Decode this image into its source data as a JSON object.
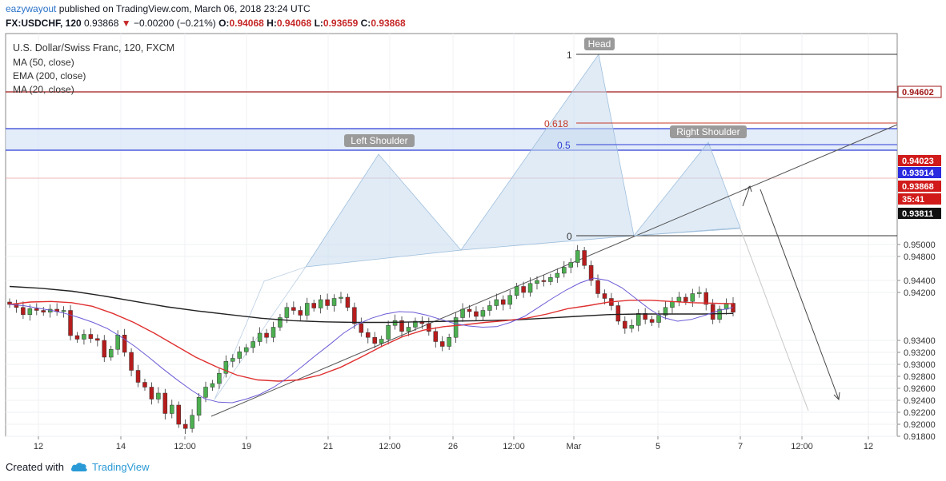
{
  "header": {
    "user": "eazywayout",
    "published": "published on TradingView.com, March 06, 2018 23:24 UTC",
    "symbol": "FX:USDCHF, 120",
    "last": "0.93868",
    "change_arrow": "▼",
    "change": "−0.00200 (−0.21%)",
    "o_label": "O:",
    "o_value": "0.94068",
    "h_label": "H:",
    "h_value": "0.94068",
    "l_label": "L:",
    "l_value": "0.93659",
    "c_label": "C:",
    "c_value": "0.93868"
  },
  "legend": {
    "title": "U.S. Dollar/Swiss Franc, 120, FXCM",
    "ma50": "MA (50, close)",
    "ema200": "EMA (200, close)",
    "ma20": "MA (20, close)"
  },
  "footer": {
    "created_with": "Created with",
    "brand": "TradingView"
  },
  "colors": {
    "up": "#4caf50",
    "down": "#b71c1c",
    "ma50": "#e03030",
    "ema200": "#222222",
    "ma20": "#6b5bd6",
    "pattern_fill": "#cfe0f0",
    "hline_red": "#a11919",
    "hline_blue": "#2d3ed6",
    "tag_blue": "#2b2be0",
    "tag_red": "#d11a1a"
  },
  "chart_data": {
    "type": "line",
    "title": "U.S. Dollar/Swiss Franc, 120, FXCM",
    "xlabel": "",
    "ylabel": "",
    "ylim": [
      0.9172,
      0.951
    ],
    "x_ticks": [
      "12",
      "14",
      "12:00",
      "19",
      "21",
      "12:00",
      "26",
      "12:00",
      "Mar",
      "5",
      "7",
      "12:00",
      "12"
    ],
    "y_ticks": [
      "0.95000",
      "0.94800",
      "0.94400",
      "0.94200",
      "0.93400",
      "0.93200",
      "0.93000",
      "0.92800",
      "0.92600",
      "0.92400",
      "0.92200",
      "0.92000",
      "0.91800"
    ],
    "price_tags": [
      {
        "label": "0.94602",
        "value": 0.94602,
        "style": "red"
      },
      {
        "label": "0.94023",
        "value": 0.94023,
        "style": "red"
      },
      {
        "label": "0.93914",
        "value": 0.93914,
        "style": "blue"
      },
      {
        "label": "0.93868",
        "value": 0.93868,
        "style": "red"
      },
      {
        "label": "35:41",
        "value": 0.93745,
        "style": "red"
      },
      {
        "label": "0.93811",
        "value": 0.93811,
        "style": "black"
      }
    ],
    "annotations": [
      "Head",
      "Left Shoulder",
      "Right Shoulder"
    ],
    "fib_levels": [
      {
        "label": "1",
        "value": 0.9492
      },
      {
        "label": "0.618",
        "value": 0.9435
      },
      {
        "label": "0.5",
        "value": 0.9416
      },
      {
        "label": "0",
        "value": 0.934
      }
    ],
    "close_series": [
      0.94,
      0.9395,
      0.9383,
      0.9393,
      0.939,
      0.9387,
      0.9392,
      0.9388,
      0.939,
      0.9348,
      0.9342,
      0.935,
      0.9343,
      0.934,
      0.9312,
      0.9325,
      0.9349,
      0.932,
      0.929,
      0.927,
      0.9262,
      0.9242,
      0.9252,
      0.9218,
      0.9232,
      0.92,
      0.9193,
      0.9215,
      0.9245,
      0.9262,
      0.9268,
      0.9285,
      0.9305,
      0.931,
      0.9321,
      0.9328,
      0.9338,
      0.9352,
      0.9345,
      0.9362,
      0.9378,
      0.9395,
      0.939,
      0.9382,
      0.9402,
      0.9394,
      0.9408,
      0.9398,
      0.941,
      0.9412,
      0.9395,
      0.9368,
      0.9353,
      0.9345,
      0.9335,
      0.9342,
      0.9365,
      0.9373,
      0.9355,
      0.9362,
      0.9372,
      0.9368,
      0.9355,
      0.9338,
      0.933,
      0.9345,
      0.9378,
      0.9392,
      0.9388,
      0.938,
      0.939,
      0.9398,
      0.9408,
      0.94,
      0.9415,
      0.943,
      0.942,
      0.9435,
      0.944,
      0.9438,
      0.9445,
      0.9452,
      0.9462,
      0.947,
      0.949,
      0.9465,
      0.944,
      0.9418,
      0.941,
      0.9398,
      0.9372,
      0.936,
      0.9365,
      0.9385,
      0.9375,
      0.937,
      0.9382,
      0.9395,
      0.9405,
      0.9412,
      0.9405,
      0.9418,
      0.942,
      0.94,
      0.9375,
      0.9392,
      0.9402,
      0.9387
    ],
    "ma20_series": [
      0.94,
      0.9398,
      0.9394,
      0.939,
      0.9385,
      0.9378,
      0.937,
      0.936,
      0.9346,
      0.933,
      0.9312,
      0.9293,
      0.9275,
      0.9258,
      0.9243,
      0.9237,
      0.9236,
      0.9242,
      0.925,
      0.9262,
      0.9278,
      0.9296,
      0.9315,
      0.9333,
      0.9352,
      0.9367,
      0.9377,
      0.9384,
      0.9388,
      0.9387,
      0.9382,
      0.9375,
      0.9368,
      0.9364,
      0.9362,
      0.9363,
      0.937,
      0.938,
      0.9395,
      0.941,
      0.9424,
      0.9436,
      0.9444,
      0.944,
      0.9428,
      0.941,
      0.9392,
      0.9378,
      0.9372,
      0.9375,
      0.9382,
      0.939,
      0.9395
    ],
    "ma50_series": [
      0.94,
      0.9404,
      0.9405,
      0.9403,
      0.9397,
      0.9385,
      0.937,
      0.9352,
      0.9332,
      0.9312,
      0.9296,
      0.9282,
      0.9274,
      0.9272,
      0.9274,
      0.9282,
      0.9295,
      0.9312,
      0.933,
      0.9346,
      0.9357,
      0.9363,
      0.9366,
      0.937,
      0.9373,
      0.9377,
      0.9384,
      0.9393,
      0.9398,
      0.9404,
      0.9407,
      0.9407,
      0.9405,
      0.9403,
      0.9402,
      0.9401
    ],
    "ema200_series": [
      0.943,
      0.9427,
      0.9422,
      0.9414,
      0.9405,
      0.9396,
      0.9389,
      0.9383,
      0.9377,
      0.9373,
      0.9371,
      0.937,
      0.937,
      0.9371,
      0.9372,
      0.9373,
      0.9374,
      0.9377,
      0.938,
      0.9383,
      0.9384,
      0.9384,
      0.9384,
      0.9385
    ]
  }
}
